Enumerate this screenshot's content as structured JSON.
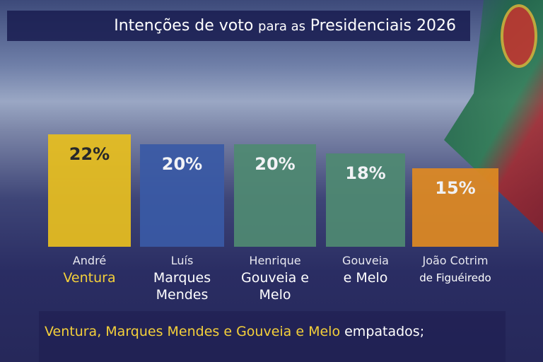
{
  "title": {
    "part1": "Intenções de voto",
    "part2": "para as",
    "part3": "Presidenciais 2026"
  },
  "chart_data": {
    "type": "bar",
    "categories": [
      "André Ventura",
      "Luís Marques Mendes",
      "Henrique Gouveia e Melo",
      "Gouveia e Melo",
      "João Cotrim de Figuéiredo"
    ],
    "values": [
      22,
      20,
      20,
      18,
      15
    ],
    "value_labels": [
      "22%",
      "20%",
      "20%",
      "18%",
      "15%"
    ],
    "colors": [
      "#e8bf1e",
      "#3a5aa6",
      "#4f8a72",
      "#4f8a72",
      "#e08a22"
    ],
    "value_colors": [
      "#222222",
      "#ffffff",
      "#ffffff",
      "#ffffff",
      "#ffffff"
    ],
    "labels": [
      {
        "first": "André",
        "last": "Ventura",
        "last_color": "#f4d03a"
      },
      {
        "first": "Luís",
        "last": "Marques Mendes",
        "last_color": "#ffffff"
      },
      {
        "first": "Henrique",
        "last": "Gouveia e Melo",
        "last_color": "#ffffff"
      },
      {
        "first": "Gouveia",
        "last": "e Melo",
        "last_color": "#ffffff"
      },
      {
        "first": "João Cotrim",
        "last": "de Figuéiredo",
        "last_color": "#ffffff"
      }
    ]
  },
  "caption": {
    "highlight": "Ventura, Marques Mendes e Gouveia e Melo",
    "rest": " empatados;"
  }
}
